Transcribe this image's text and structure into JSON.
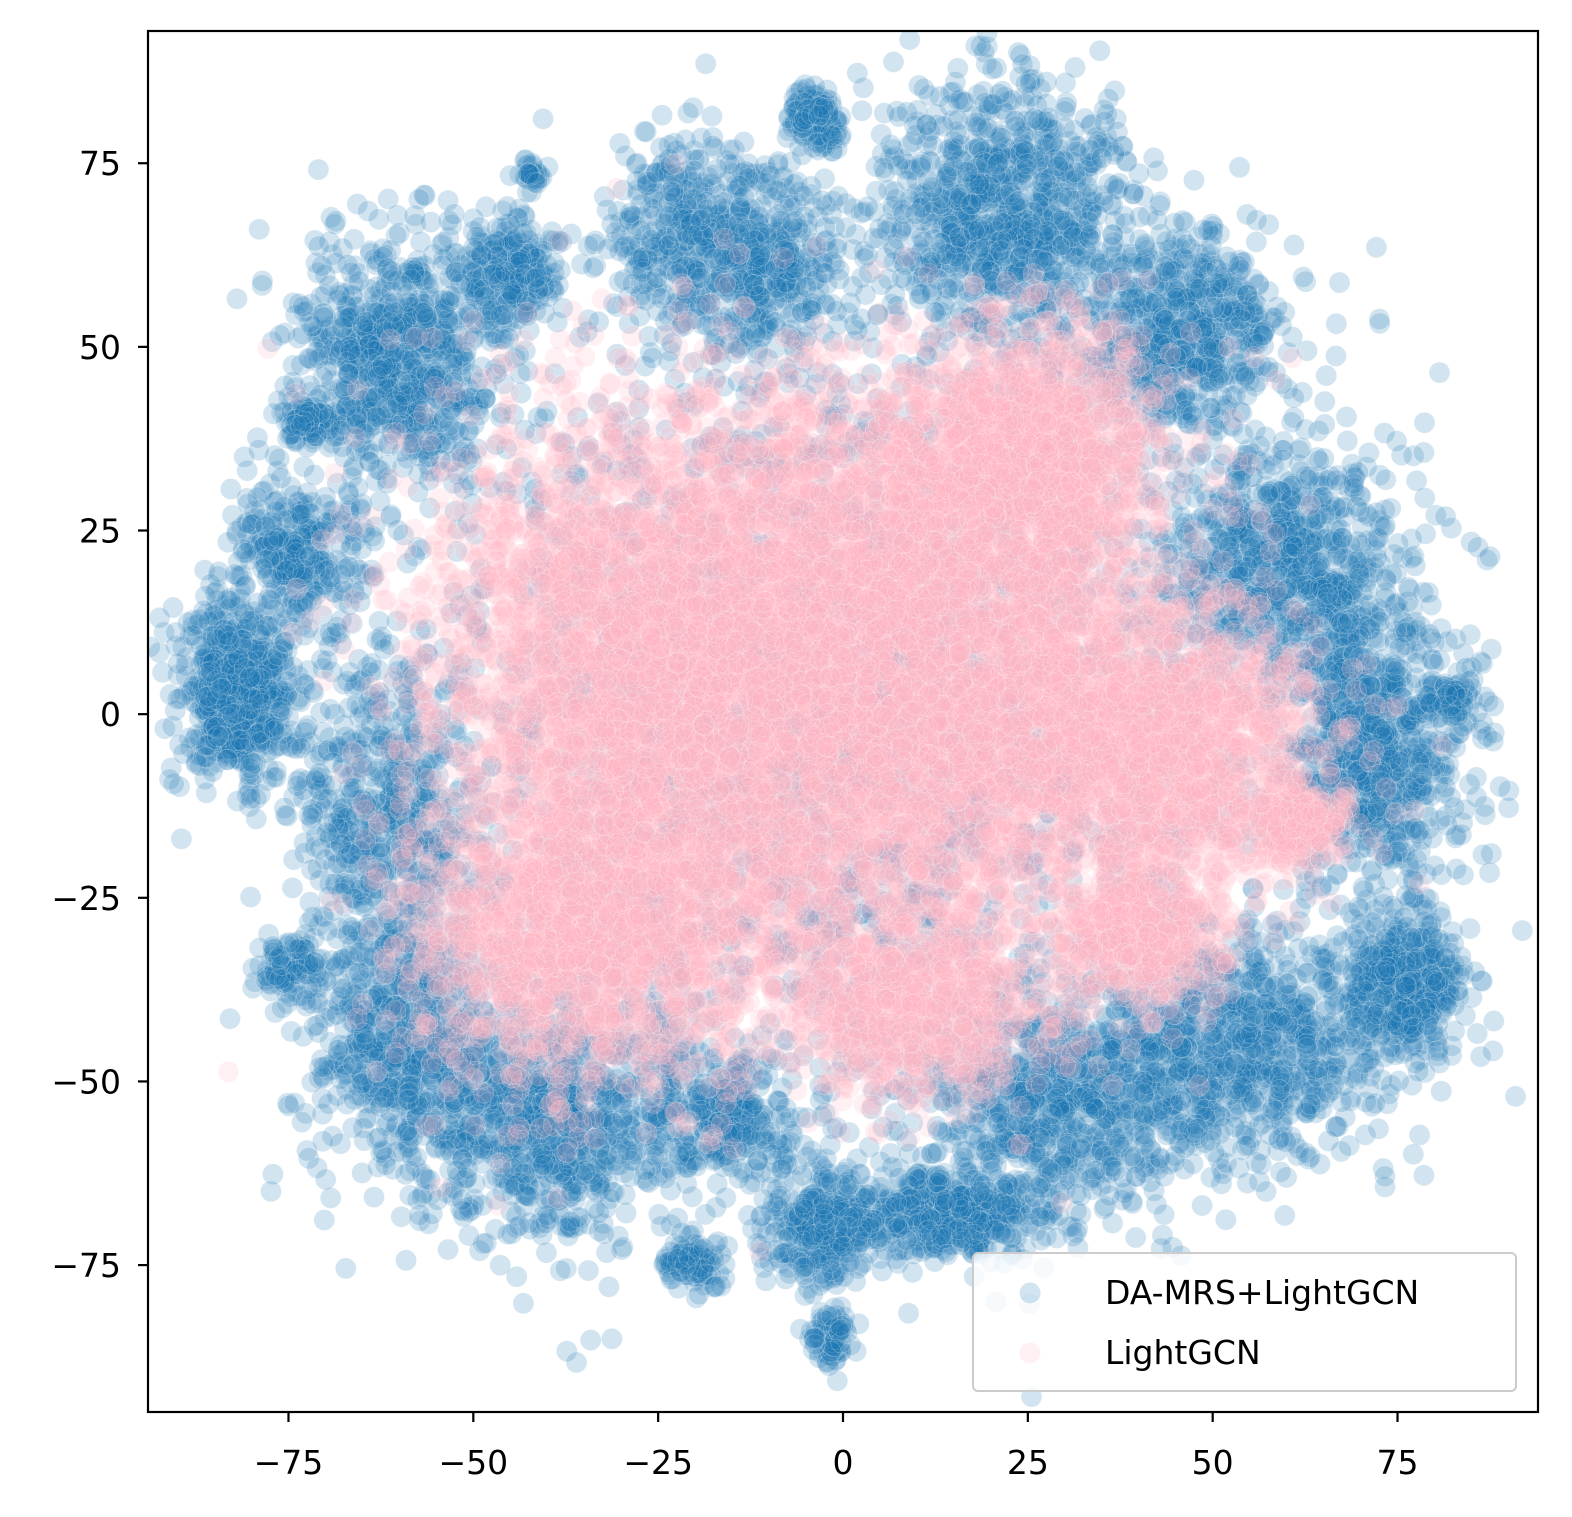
{
  "chart_data": {
    "type": "scatter",
    "title": "",
    "xlabel": "",
    "ylabel": "",
    "xlim": [
      -94,
      94
    ],
    "ylim": [
      -95,
      93
    ],
    "xticks": [
      -75,
      -50,
      -25,
      0,
      25,
      50,
      75
    ],
    "xtick_labels": [
      "−75",
      "−50",
      "−25",
      "0",
      "25",
      "50",
      "75"
    ],
    "yticks": [
      75,
      50,
      25,
      0,
      -25,
      -50,
      -75
    ],
    "ytick_labels": [
      "75",
      "50",
      "25",
      "0",
      "−25",
      "−50",
      "−75"
    ],
    "grid": false,
    "legend_position": "lower right",
    "series": [
      {
        "name": "DA-MRS+LightGCN",
        "color": "#1f77b4",
        "alpha": 0.2,
        "point_count": 14000,
        "clusters": [
          {
            "cx": -82,
            "cy": 3,
            "sx": 4,
            "sy": 6,
            "weight": 4
          },
          {
            "cx": -74,
            "cy": 22,
            "sx": 5,
            "sy": 5,
            "weight": 2
          },
          {
            "cx": -60,
            "cy": 48,
            "sx": 7,
            "sy": 8,
            "weight": 5
          },
          {
            "cx": -72,
            "cy": 40,
            "sx": 2,
            "sy": 1.5,
            "weight": 0.6
          },
          {
            "cx": -45,
            "cy": 60,
            "sx": 4,
            "sy": 4,
            "weight": 1.5
          },
          {
            "cx": -42,
            "cy": 73,
            "sx": 1,
            "sy": 1,
            "weight": 0.2
          },
          {
            "cx": -22,
            "cy": 65,
            "sx": 5,
            "sy": 7,
            "weight": 2
          },
          {
            "cx": -10,
            "cy": 62,
            "sx": 5,
            "sy": 6,
            "weight": 2.5
          },
          {
            "cx": -4,
            "cy": 81,
            "sx": 2,
            "sy": 2,
            "weight": 0.8
          },
          {
            "cx": 22,
            "cy": 68,
            "sx": 9,
            "sy": 9,
            "weight": 6
          },
          {
            "cx": 46,
            "cy": 52,
            "sx": 7,
            "sy": 7,
            "weight": 4
          },
          {
            "cx": 60,
            "cy": 20,
            "sx": 8,
            "sy": 8,
            "weight": 5
          },
          {
            "cx": 72,
            "cy": -5,
            "sx": 6,
            "sy": 10,
            "weight": 5
          },
          {
            "cx": 82,
            "cy": 2,
            "sx": 2,
            "sy": 2,
            "weight": 0.4
          },
          {
            "cx": 76,
            "cy": -37,
            "sx": 4,
            "sy": 5,
            "weight": 3
          },
          {
            "cx": 55,
            "cy": -45,
            "sx": 10,
            "sy": 8,
            "weight": 5
          },
          {
            "cx": 30,
            "cy": -52,
            "sx": 10,
            "sy": 7,
            "weight": 5
          },
          {
            "cx": 15,
            "cy": -68,
            "sx": 7,
            "sy": 3,
            "weight": 3
          },
          {
            "cx": -3,
            "cy": -70,
            "sx": 4,
            "sy": 4,
            "weight": 2
          },
          {
            "cx": -2,
            "cy": -85,
            "sx": 1.5,
            "sy": 2,
            "weight": 0.5
          },
          {
            "cx": -20,
            "cy": -75,
            "sx": 2,
            "sy": 2,
            "weight": 0.6
          },
          {
            "cx": -15,
            "cy": -55,
            "sx": 4,
            "sy": 4,
            "weight": 1.5
          },
          {
            "cx": -40,
            "cy": -55,
            "sx": 10,
            "sy": 8,
            "weight": 6
          },
          {
            "cx": -60,
            "cy": -45,
            "sx": 6,
            "sy": 7,
            "weight": 3
          },
          {
            "cx": -62,
            "cy": -15,
            "sx": 6,
            "sy": 12,
            "weight": 4
          },
          {
            "cx": -75,
            "cy": -35,
            "sx": 2,
            "sy": 2,
            "weight": 0.6
          },
          {
            "cx": 0,
            "cy": 0,
            "sx": 30,
            "sy": 30,
            "weight": 14
          }
        ]
      },
      {
        "name": "LightGCN",
        "color": "#ffb6c1",
        "alpha": 0.2,
        "point_count": 16000,
        "clusters": [
          {
            "cx": -30,
            "cy": 10,
            "sx": 14,
            "sy": 16,
            "weight": 8
          },
          {
            "cx": 0,
            "cy": 20,
            "sx": 18,
            "sy": 14,
            "weight": 9
          },
          {
            "cx": 25,
            "cy": 35,
            "sx": 9,
            "sy": 9,
            "weight": 5
          },
          {
            "cx": 20,
            "cy": 0,
            "sx": 15,
            "sy": 15,
            "weight": 8
          },
          {
            "cx": 45,
            "cy": -5,
            "sx": 10,
            "sy": 9,
            "weight": 5
          },
          {
            "cx": 62,
            "cy": -15,
            "sx": 3,
            "sy": 2.5,
            "weight": 1
          },
          {
            "cx": -35,
            "cy": -30,
            "sx": 12,
            "sy": 10,
            "weight": 6
          },
          {
            "cx": 10,
            "cy": -40,
            "sx": 9,
            "sy": 6,
            "weight": 3
          },
          {
            "cx": 40,
            "cy": -30,
            "sx": 6,
            "sy": 5,
            "weight": 2
          },
          {
            "cx": -10,
            "cy": -10,
            "sx": 18,
            "sy": 16,
            "weight": 8
          }
        ]
      }
    ]
  }
}
